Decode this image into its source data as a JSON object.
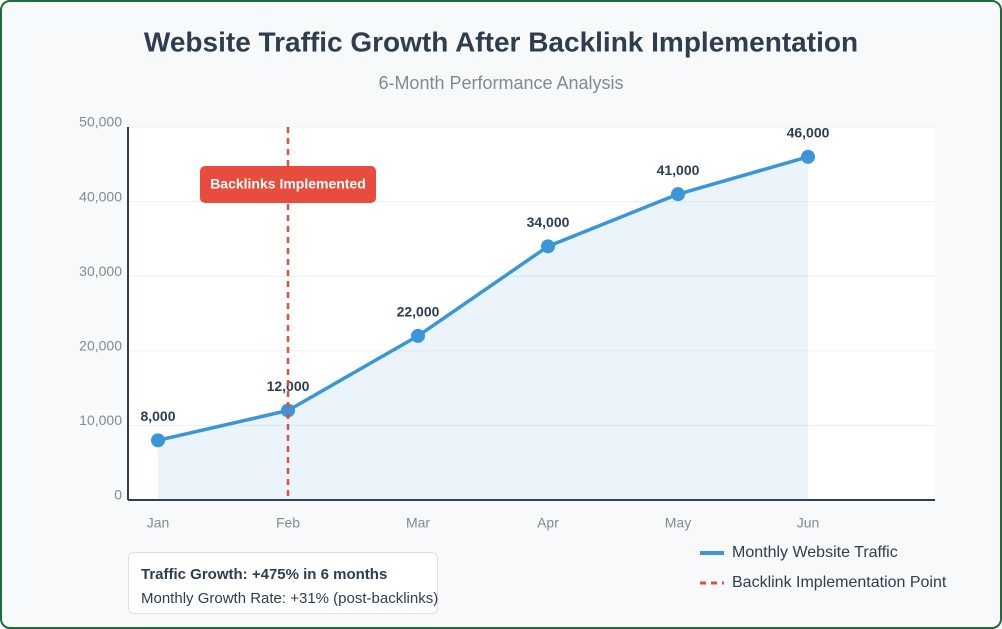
{
  "chart_data": {
    "type": "line",
    "title": "Website Traffic Growth After Backlink Implementation",
    "subtitle": "6-Month Performance Analysis",
    "categories": [
      "Jan",
      "Feb",
      "Mar",
      "Apr",
      "May",
      "Jun"
    ],
    "series": [
      {
        "name": "Monthly Website Traffic",
        "color": "#3a96d8",
        "values": [
          8000,
          12000,
          22000,
          34000,
          41000,
          46000
        ],
        "value_labels": [
          "8,000",
          "12,000",
          "22,000",
          "34,000",
          "41,000",
          "46,000"
        ]
      }
    ],
    "ylim": [
      0,
      50000
    ],
    "yticks": [
      0,
      {
        "value": 10000,
        "label": "10,000"
      },
      {
        "value": 20000,
        "label": "20,000"
      },
      {
        "value": 30000,
        "label": "30,000"
      },
      {
        "value": 40000,
        "label": "40,000"
      },
      {
        "value": 50000,
        "label": "50,000"
      }
    ],
    "grid": true,
    "marker": {
      "category": "Feb",
      "label": "Backlinks Implemented",
      "name": "Backlink Implementation Point",
      "color": "#e74c3c"
    },
    "notes": [
      "Traffic Growth: +475% in 6 months",
      "Monthly Growth Rate: +31% (post-backlinks)"
    ]
  }
}
